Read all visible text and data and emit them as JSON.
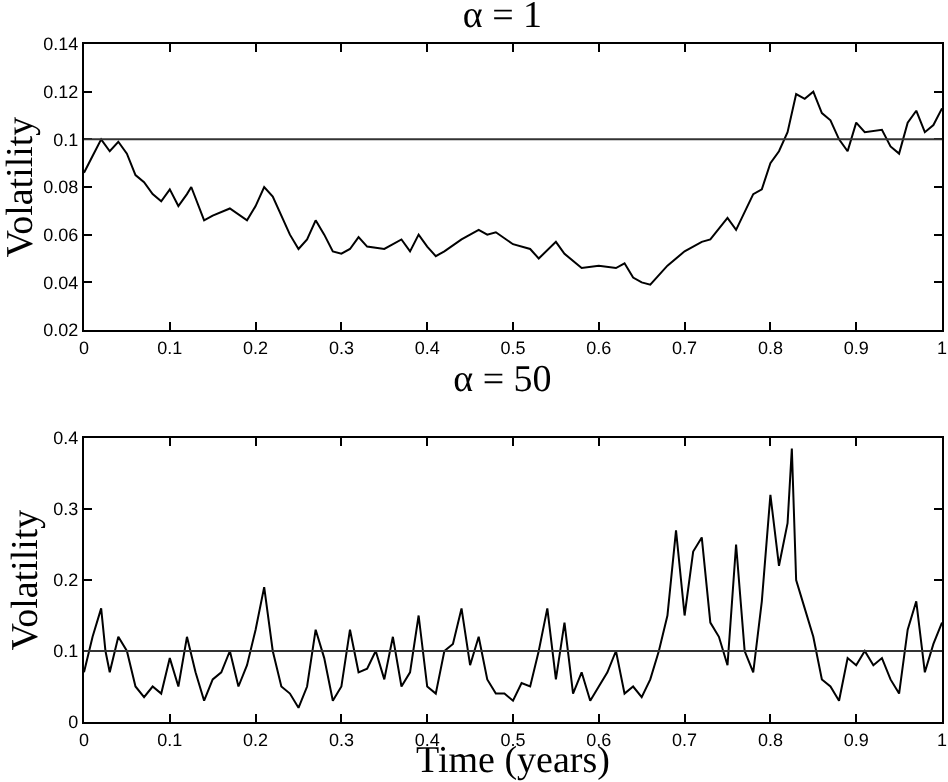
{
  "chart_data": [
    {
      "type": "line",
      "title": "α = 1",
      "ylabel": "Volatility",
      "xlim": [
        0,
        1
      ],
      "xticks": [
        0,
        0.1,
        0.2,
        0.3,
        0.4,
        0.5,
        0.6,
        0.7,
        0.8,
        0.9,
        1
      ],
      "ylim": [
        0.02,
        0.14
      ],
      "yticks": [
        0.02,
        0.04,
        0.06,
        0.08,
        0.1,
        0.12,
        0.14
      ],
      "x": [
        0,
        0.01,
        0.02,
        0.03,
        0.04,
        0.05,
        0.06,
        0.07,
        0.08,
        0.09,
        0.1,
        0.11,
        0.12,
        0.125,
        0.14,
        0.15,
        0.17,
        0.19,
        0.2,
        0.21,
        0.22,
        0.24,
        0.25,
        0.26,
        0.27,
        0.28,
        0.29,
        0.3,
        0.31,
        0.32,
        0.33,
        0.35,
        0.37,
        0.38,
        0.39,
        0.4,
        0.41,
        0.42,
        0.44,
        0.46,
        0.47,
        0.48,
        0.5,
        0.52,
        0.53,
        0.55,
        0.56,
        0.58,
        0.6,
        0.62,
        0.63,
        0.64,
        0.65,
        0.66,
        0.68,
        0.7,
        0.72,
        0.73,
        0.75,
        0.76,
        0.78,
        0.79,
        0.8,
        0.81,
        0.82,
        0.83,
        0.84,
        0.85,
        0.86,
        0.87,
        0.88,
        0.89,
        0.9,
        0.91,
        0.93,
        0.94,
        0.95,
        0.96,
        0.97,
        0.98,
        0.99,
        1
      ],
      "series": [
        {
          "color": "#000000",
          "values": [
            0.086,
            0.093,
            0.1,
            0.095,
            0.099,
            0.094,
            0.085,
            0.082,
            0.077,
            0.074,
            0.079,
            0.072,
            0.077,
            0.08,
            0.066,
            0.068,
            0.071,
            0.066,
            0.072,
            0.08,
            0.076,
            0.06,
            0.054,
            0.058,
            0.066,
            0.06,
            0.053,
            0.052,
            0.054,
            0.059,
            0.055,
            0.054,
            0.058,
            0.053,
            0.06,
            0.055,
            0.051,
            0.053,
            0.058,
            0.062,
            0.06,
            0.061,
            0.056,
            0.054,
            0.05,
            0.057,
            0.052,
            0.046,
            0.047,
            0.046,
            0.048,
            0.042,
            0.04,
            0.039,
            0.047,
            0.053,
            0.057,
            0.058,
            0.067,
            0.062,
            0.077,
            0.079,
            0.09,
            0.095,
            0.103,
            0.119,
            0.117,
            0.12,
            0.111,
            0.108,
            0.1,
            0.095,
            0.107,
            0.103,
            0.104,
            0.097,
            0.094,
            0.107,
            0.112,
            0.103,
            0.106,
            0.113
          ]
        }
      ],
      "ref_lines": [
        {
          "axis": "y",
          "value": 0.1,
          "color": "#333333"
        }
      ]
    },
    {
      "type": "line",
      "title": "α = 50",
      "ylabel": "Volatility",
      "xlabel": "Time (years)",
      "xlim": [
        0,
        1
      ],
      "xticks": [
        0,
        0.1,
        0.2,
        0.3,
        0.4,
        0.5,
        0.6,
        0.7,
        0.8,
        0.9,
        1
      ],
      "ylim": [
        0,
        0.4
      ],
      "yticks": [
        0,
        0.1,
        0.2,
        0.3,
        0.4
      ],
      "x": [
        0,
        0.01,
        0.02,
        0.025,
        0.03,
        0.04,
        0.05,
        0.06,
        0.07,
        0.08,
        0.09,
        0.1,
        0.11,
        0.12,
        0.13,
        0.14,
        0.15,
        0.16,
        0.17,
        0.18,
        0.19,
        0.2,
        0.21,
        0.22,
        0.23,
        0.24,
        0.25,
        0.26,
        0.27,
        0.28,
        0.29,
        0.3,
        0.31,
        0.32,
        0.33,
        0.34,
        0.35,
        0.36,
        0.37,
        0.38,
        0.39,
        0.4,
        0.41,
        0.42,
        0.43,
        0.44,
        0.45,
        0.46,
        0.47,
        0.48,
        0.49,
        0.5,
        0.51,
        0.52,
        0.53,
        0.54,
        0.55,
        0.56,
        0.57,
        0.58,
        0.59,
        0.6,
        0.61,
        0.62,
        0.63,
        0.64,
        0.65,
        0.66,
        0.67,
        0.68,
        0.69,
        0.7,
        0.71,
        0.72,
        0.73,
        0.74,
        0.75,
        0.76,
        0.77,
        0.78,
        0.79,
        0.8,
        0.81,
        0.82,
        0.825,
        0.83,
        0.84,
        0.85,
        0.86,
        0.87,
        0.88,
        0.89,
        0.9,
        0.91,
        0.92,
        0.93,
        0.94,
        0.95,
        0.96,
        0.97,
        0.98,
        0.99,
        1
      ],
      "series": [
        {
          "color": "#000000",
          "values": [
            0.07,
            0.12,
            0.16,
            0.1,
            0.07,
            0.12,
            0.1,
            0.05,
            0.035,
            0.05,
            0.04,
            0.09,
            0.05,
            0.12,
            0.07,
            0.03,
            0.06,
            0.07,
            0.1,
            0.05,
            0.08,
            0.13,
            0.19,
            0.1,
            0.05,
            0.04,
            0.02,
            0.05,
            0.13,
            0.09,
            0.03,
            0.05,
            0.13,
            0.07,
            0.075,
            0.1,
            0.06,
            0.12,
            0.05,
            0.07,
            0.15,
            0.05,
            0.04,
            0.1,
            0.11,
            0.16,
            0.08,
            0.12,
            0.06,
            0.04,
            0.04,
            0.03,
            0.055,
            0.05,
            0.1,
            0.16,
            0.06,
            0.14,
            0.04,
            0.07,
            0.03,
            0.05,
            0.07,
            0.1,
            0.04,
            0.05,
            0.035,
            0.06,
            0.1,
            0.15,
            0.27,
            0.15,
            0.24,
            0.26,
            0.14,
            0.12,
            0.08,
            0.25,
            0.1,
            0.07,
            0.17,
            0.32,
            0.22,
            0.28,
            0.385,
            0.2,
            0.16,
            0.12,
            0.06,
            0.05,
            0.03,
            0.09,
            0.08,
            0.1,
            0.08,
            0.09,
            0.06,
            0.04,
            0.13,
            0.17,
            0.07,
            0.11,
            0.14
          ]
        }
      ],
      "ref_lines": [
        {
          "axis": "y",
          "value": 0.1,
          "color": "#333333"
        }
      ]
    }
  ]
}
